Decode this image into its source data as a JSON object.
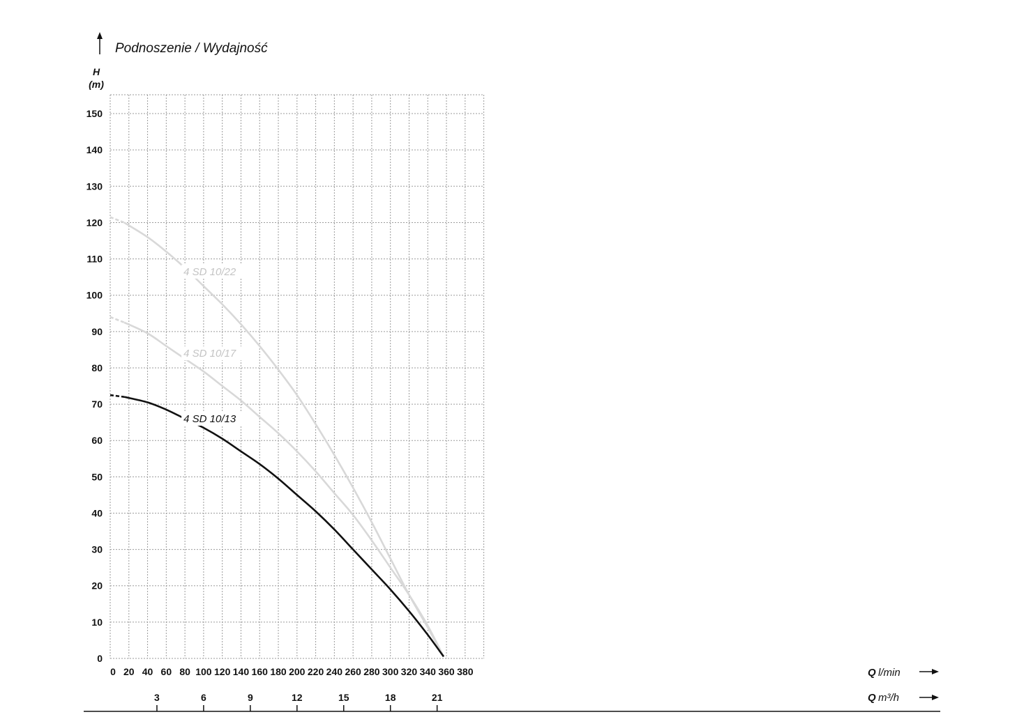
{
  "chart_data": {
    "type": "line",
    "title": "Podnoszenie / Wydajność",
    "ylabel_symbol": "H",
    "ylabel_unit": "(m)",
    "xlabel_primary": {
      "symbol": "Q",
      "unit": "l/min"
    },
    "xlabel_secondary": {
      "symbol": "Q",
      "unit": "m³/h"
    },
    "x_ticks": [
      "0",
      "20",
      "40",
      "60",
      "80",
      "100",
      "120",
      "140",
      "160",
      "180",
      "200",
      "220",
      "240",
      "260",
      "280",
      "300",
      "320",
      "340",
      "360",
      "380"
    ],
    "y_ticks": [
      "0",
      "10",
      "20",
      "30",
      "40",
      "50",
      "60",
      "70",
      "80",
      "90",
      "100",
      "110",
      "120",
      "130",
      "140",
      "150"
    ],
    "secondary_ticks": [
      {
        "label": "3",
        "value": 3
      },
      {
        "label": "6",
        "value": 6
      },
      {
        "label": "9",
        "value": 9
      },
      {
        "label": "12",
        "value": 12
      },
      {
        "label": "15",
        "value": 15
      },
      {
        "label": "18",
        "value": 18
      },
      {
        "label": "21",
        "value": 21
      }
    ],
    "xlim": [
      0,
      400
    ],
    "ylim": [
      0,
      155
    ],
    "grid": true,
    "series": [
      {
        "name": "4 SD 10/13",
        "color": "#111111",
        "dashed_until": 15,
        "label_at": [
          83,
          66
        ],
        "x": [
          0,
          15,
          40,
          60,
          80,
          100,
          120,
          140,
          160,
          180,
          200,
          220,
          240,
          260,
          280,
          300,
          320,
          340,
          357
        ],
        "y": [
          72.5,
          72,
          70.5,
          68.5,
          66,
          63.5,
          60.5,
          57,
          53.5,
          49.5,
          45,
          40.5,
          35.5,
          30,
          24.5,
          19,
          13,
          6.5,
          0.5
        ]
      },
      {
        "name": "4 SD 10/17",
        "color": "#d8d8d8",
        "dashed_until": 15,
        "label_at": [
          83,
          84
        ],
        "x": [
          0,
          15,
          40,
          60,
          80,
          100,
          120,
          140,
          160,
          180,
          200,
          220,
          240,
          260,
          280,
          300,
          320,
          340,
          357
        ],
        "y": [
          94,
          92.5,
          89.5,
          86,
          82.5,
          79,
          75,
          71,
          66.5,
          62,
          57,
          51.5,
          45.5,
          39.5,
          32.5,
          25,
          17.5,
          9,
          0.5
        ]
      },
      {
        "name": "4 SD 10/22",
        "color": "#d8d8d8",
        "dashed_until": 15,
        "label_at": [
          83,
          106.5
        ],
        "x": [
          0,
          15,
          40,
          60,
          80,
          100,
          120,
          140,
          160,
          180,
          200,
          220,
          240,
          260,
          280,
          300,
          320,
          340,
          357
        ],
        "y": [
          121.5,
          120,
          116,
          112,
          107.5,
          102.5,
          97.5,
          92,
          86,
          79.5,
          72.5,
          64.5,
          56,
          47,
          37.5,
          27.5,
          17.5,
          8.5,
          0.5
        ]
      }
    ]
  }
}
